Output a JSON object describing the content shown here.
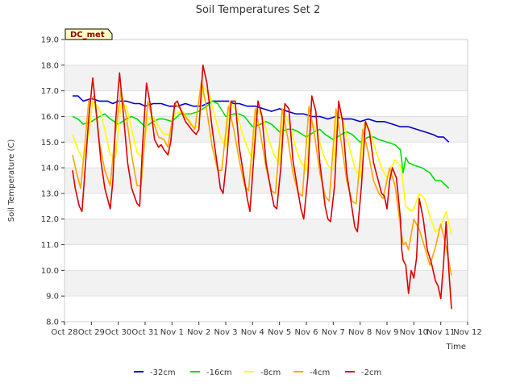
{
  "chart_data": {
    "type": "line",
    "title": "Soil Temperatures Set 2",
    "xlabel": "Time",
    "ylabel": "Soil Temperature (C)",
    "station_label": "DC_met",
    "xlim": [
      0,
      15
    ],
    "ylim": [
      8.0,
      19.0
    ],
    "x_ticks": [
      0,
      1,
      2,
      3,
      4,
      5,
      6,
      7,
      8,
      9,
      10,
      11,
      12,
      13,
      14,
      15
    ],
    "x_tick_labels": [
      "Oct 28",
      "Oct 29",
      "Oct 30",
      "Oct 31",
      "Nov 1",
      "Nov 2",
      "Nov 3",
      "Nov 4",
      "Nov 5",
      "Nov 6",
      "Nov 7",
      "Nov 8",
      "Nov 9",
      "Nov 10",
      "Nov 11",
      "Nov 12"
    ],
    "y_ticks": [
      8.0,
      9.0,
      10.0,
      11.0,
      12.0,
      13.0,
      14.0,
      15.0,
      16.0,
      17.0,
      18.0,
      19.0
    ],
    "y_tick_labels": [
      "8.0",
      "9.0",
      "10.0",
      "11.0",
      "12.0",
      "13.0",
      "14.0",
      "15.0",
      "16.0",
      "17.0",
      "18.0",
      "19.0"
    ],
    "grid_bands": true,
    "legend_position": "bottom",
    "series": [
      {
        "name": "-32cm",
        "color": "#0000cc",
        "x": [
          0.3,
          0.5,
          0.7,
          1.0,
          1.3,
          1.6,
          1.8,
          2.0,
          2.3,
          2.6,
          2.8,
          3.0,
          3.3,
          3.6,
          3.9,
          4.2,
          4.5,
          4.8,
          5.1,
          5.3,
          5.5,
          5.8,
          6.1,
          6.3,
          6.5,
          6.8,
          7.1,
          7.4,
          7.7,
          8.0,
          8.3,
          8.6,
          8.9,
          9.2,
          9.5,
          9.8,
          10.1,
          10.4,
          10.7,
          11.0,
          11.3,
          11.6,
          11.9,
          12.2,
          12.5,
          12.8,
          13.1,
          13.4,
          13.7,
          13.9,
          14.1,
          14.3
        ],
        "y": [
          16.8,
          16.8,
          16.6,
          16.7,
          16.6,
          16.6,
          16.5,
          16.6,
          16.6,
          16.5,
          16.5,
          16.4,
          16.5,
          16.5,
          16.4,
          16.4,
          16.5,
          16.4,
          16.4,
          16.5,
          16.6,
          16.6,
          16.6,
          16.5,
          16.5,
          16.4,
          16.4,
          16.3,
          16.2,
          16.3,
          16.2,
          16.1,
          16.1,
          16.0,
          16.0,
          15.9,
          16.0,
          15.9,
          15.9,
          15.8,
          15.9,
          15.8,
          15.8,
          15.7,
          15.6,
          15.6,
          15.5,
          15.4,
          15.3,
          15.2,
          15.2,
          15.0
        ]
      },
      {
        "name": "-16cm",
        "color": "#00e000",
        "x": [
          0.3,
          0.5,
          0.7,
          1.0,
          1.3,
          1.5,
          1.7,
          2.0,
          2.3,
          2.5,
          2.7,
          3.0,
          3.3,
          3.5,
          3.7,
          4.0,
          4.3,
          4.5,
          4.7,
          5.0,
          5.3,
          5.5,
          5.7,
          6.0,
          6.3,
          6.5,
          6.7,
          7.0,
          7.3,
          7.5,
          7.7,
          8.0,
          8.3,
          8.5,
          8.7,
          9.0,
          9.3,
          9.5,
          9.7,
          10.0,
          10.3,
          10.5,
          10.7,
          11.0,
          11.3,
          11.5,
          11.7,
          12.0,
          12.3,
          12.5,
          12.6,
          12.7,
          12.8,
          13.0,
          13.3,
          13.6,
          13.8,
          14.0,
          14.3
        ],
        "y": [
          16.0,
          15.9,
          15.7,
          15.8,
          16.0,
          16.1,
          15.9,
          15.7,
          15.9,
          16.0,
          15.9,
          15.6,
          15.8,
          15.9,
          15.9,
          15.8,
          16.1,
          16.1,
          16.1,
          16.2,
          16.4,
          16.6,
          16.5,
          16.0,
          16.1,
          16.1,
          16.0,
          15.6,
          15.7,
          15.8,
          15.7,
          15.4,
          15.5,
          15.5,
          15.4,
          15.2,
          15.4,
          15.5,
          15.3,
          15.1,
          15.3,
          15.4,
          15.3,
          15.0,
          15.2,
          15.2,
          15.1,
          15.0,
          14.9,
          14.7,
          13.8,
          14.4,
          14.2,
          14.1,
          14.0,
          13.8,
          13.5,
          13.5,
          13.2
        ]
      },
      {
        "name": "-8cm",
        "color": "#ffff00",
        "x": [
          0.3,
          0.5,
          0.7,
          0.9,
          1.05,
          1.3,
          1.5,
          1.7,
          1.9,
          2.1,
          2.3,
          2.5,
          2.7,
          2.9,
          3.1,
          3.3,
          3.5,
          3.7,
          3.9,
          4.1,
          4.4,
          4.6,
          4.8,
          5.0,
          5.15,
          5.4,
          5.6,
          5.8,
          6.0,
          6.15,
          6.4,
          6.6,
          6.8,
          7.0,
          7.15,
          7.4,
          7.6,
          7.8,
          8.0,
          8.15,
          8.4,
          8.6,
          8.8,
          9.0,
          9.15,
          9.4,
          9.6,
          9.8,
          10.0,
          10.15,
          10.4,
          10.6,
          10.8,
          11.0,
          11.15,
          11.4,
          11.6,
          11.8,
          12.0,
          12.1,
          12.3,
          12.5,
          12.6,
          12.7,
          12.9,
          13.0,
          13.2,
          13.4,
          13.6,
          13.8,
          14.0,
          14.2,
          14.4
        ],
        "y": [
          15.3,
          14.7,
          14.3,
          15.3,
          16.6,
          16.3,
          15.5,
          14.5,
          14.4,
          16.5,
          16.4,
          15.5,
          14.6,
          14.4,
          15.9,
          16.0,
          15.6,
          15.3,
          15.3,
          16.1,
          16.2,
          15.9,
          15.6,
          15.6,
          17.2,
          16.8,
          16.0,
          15.2,
          14.8,
          16.6,
          16.2,
          15.4,
          14.8,
          14.3,
          16.3,
          15.9,
          15.1,
          14.5,
          14.1,
          16.2,
          15.6,
          14.8,
          14.2,
          13.9,
          15.9,
          15.4,
          14.6,
          14.1,
          13.9,
          16.2,
          15.7,
          14.8,
          14.0,
          13.6,
          15.8,
          15.3,
          14.6,
          14.0,
          13.6,
          13.9,
          14.3,
          14.1,
          13.4,
          12.5,
          12.3,
          12.4,
          13.0,
          12.8,
          12.1,
          11.5,
          11.7,
          12.3,
          11.4
        ]
      },
      {
        "name": "-4cm",
        "color": "#ffa500",
        "x": [
          0.3,
          0.45,
          0.6,
          0.75,
          0.9,
          1.1,
          1.3,
          1.5,
          1.7,
          1.85,
          2.1,
          2.3,
          2.5,
          2.7,
          2.85,
          3.1,
          3.3,
          3.5,
          3.7,
          3.85,
          4.1,
          4.3,
          4.5,
          4.7,
          4.85,
          5.1,
          5.3,
          5.5,
          5.7,
          5.85,
          6.1,
          6.3,
          6.5,
          6.7,
          6.85,
          7.1,
          7.3,
          7.5,
          7.7,
          7.85,
          8.1,
          8.3,
          8.5,
          8.7,
          8.85,
          9.1,
          9.3,
          9.5,
          9.7,
          9.85,
          10.1,
          10.3,
          10.5,
          10.7,
          10.85,
          11.1,
          11.3,
          11.5,
          11.7,
          11.85,
          12.1,
          12.3,
          12.5,
          12.6,
          12.7,
          12.8,
          13.0,
          13.2,
          13.4,
          13.6,
          13.8,
          14.0,
          14.2,
          14.4
        ],
        "y": [
          14.5,
          13.8,
          13.2,
          14.8,
          16.6,
          16.8,
          15.0,
          13.9,
          13.3,
          15.0,
          17.0,
          16.0,
          14.5,
          13.3,
          13.3,
          16.6,
          15.8,
          15.2,
          15.1,
          14.8,
          16.5,
          16.3,
          16.0,
          15.7,
          15.5,
          17.4,
          16.2,
          14.8,
          13.9,
          13.9,
          16.4,
          15.5,
          14.3,
          13.3,
          13.1,
          16.3,
          15.3,
          14.0,
          13.1,
          13.0,
          16.3,
          15.2,
          13.8,
          13.0,
          12.9,
          16.4,
          15.3,
          13.8,
          12.9,
          12.7,
          16.3,
          15.0,
          13.5,
          12.7,
          12.6,
          15.5,
          14.6,
          13.5,
          13.0,
          12.8,
          14.0,
          13.3,
          11.7,
          11.0,
          11.1,
          10.8,
          12.0,
          11.6,
          10.9,
          10.2,
          10.9,
          11.8,
          10.9,
          9.8
        ]
      },
      {
        "name": "-2cm",
        "color": "#dd0000",
        "x": [
          0.3,
          0.4,
          0.55,
          0.65,
          0.75,
          0.9,
          1.05,
          1.2,
          1.35,
          1.5,
          1.7,
          1.8,
          1.9,
          2.05,
          2.2,
          2.35,
          2.5,
          2.7,
          2.8,
          2.9,
          3.05,
          3.2,
          3.35,
          3.5,
          3.6,
          3.7,
          3.85,
          3.95,
          4.1,
          4.2,
          4.35,
          4.5,
          4.65,
          4.8,
          4.9,
          5.0,
          5.15,
          5.3,
          5.5,
          5.7,
          5.8,
          5.9,
          6.05,
          6.2,
          6.35,
          6.5,
          6.7,
          6.8,
          6.9,
          7.05,
          7.2,
          7.35,
          7.5,
          7.7,
          7.8,
          7.9,
          8.05,
          8.2,
          8.35,
          8.5,
          8.7,
          8.8,
          8.9,
          9.05,
          9.2,
          9.35,
          9.5,
          9.7,
          9.8,
          9.9,
          10.05,
          10.2,
          10.35,
          10.5,
          10.7,
          10.8,
          10.9,
          11.05,
          11.2,
          11.35,
          11.5,
          11.7,
          11.8,
          11.9,
          12.0,
          12.1,
          12.2,
          12.35,
          12.5,
          12.55,
          12.6,
          12.7,
          12.8,
          12.9,
          13.0,
          13.1,
          13.2,
          13.35,
          13.5,
          13.65,
          13.8,
          13.9,
          14.0,
          14.1,
          14.2,
          14.3,
          14.4
        ],
        "y": [
          13.9,
          13.2,
          12.5,
          12.3,
          13.7,
          15.9,
          17.5,
          16.0,
          14.3,
          13.2,
          12.4,
          13.5,
          15.8,
          17.7,
          16.0,
          14.2,
          13.2,
          12.6,
          12.5,
          14.8,
          17.3,
          16.4,
          15.1,
          14.8,
          14.9,
          14.7,
          14.5,
          15.0,
          16.5,
          16.6,
          16.2,
          15.8,
          15.6,
          15.4,
          15.3,
          15.5,
          18.0,
          17.3,
          15.5,
          14.0,
          13.2,
          13.0,
          14.5,
          16.6,
          16.6,
          14.8,
          13.5,
          12.8,
          12.3,
          14.5,
          16.6,
          16.0,
          14.2,
          13.0,
          12.5,
          12.4,
          14.0,
          16.5,
          16.3,
          14.3,
          13.0,
          12.4,
          12.0,
          13.6,
          16.8,
          16.2,
          14.2,
          12.5,
          12.0,
          11.9,
          13.3,
          16.6,
          15.8,
          13.8,
          12.4,
          11.7,
          11.5,
          13.3,
          15.8,
          15.4,
          14.2,
          13.4,
          13.0,
          12.9,
          12.4,
          13.5,
          14.0,
          13.6,
          12.0,
          10.8,
          10.4,
          10.2,
          9.1,
          10.0,
          9.7,
          10.5,
          12.8,
          12.0,
          10.8,
          10.3,
          9.6,
          9.4,
          8.9,
          10.2,
          11.9,
          10.0,
          8.5
        ]
      }
    ]
  }
}
